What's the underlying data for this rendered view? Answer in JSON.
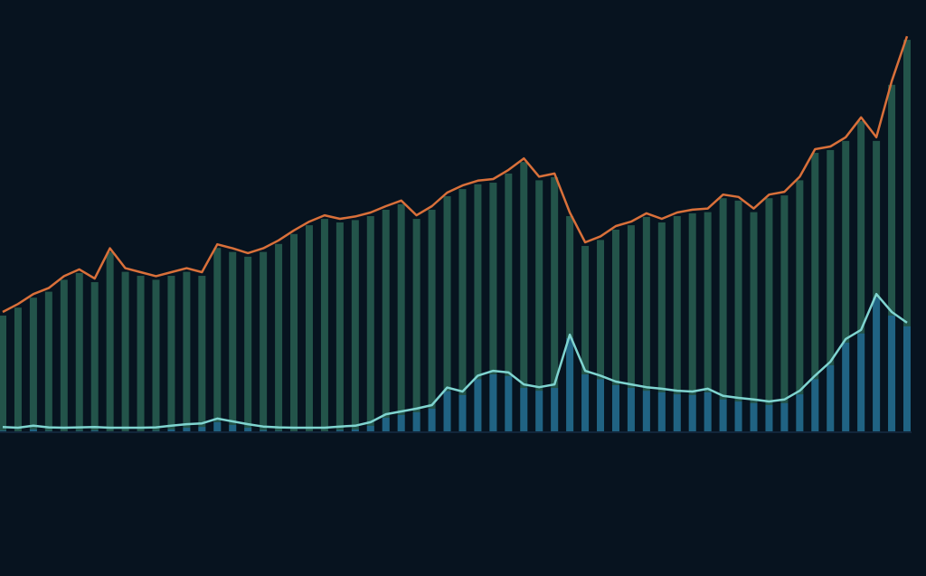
{
  "chart_data": {
    "type": "line",
    "ylim": [
      0,
      100
    ],
    "background": "#07131f",
    "series": [
      {
        "color": "#d9703a",
        "fill": "#3b8a6e",
        "values": [
          30,
          32,
          34.5,
          36,
          39,
          40.7,
          38.4,
          46,
          41,
          40,
          39,
          40,
          41,
          40,
          47,
          46,
          44.8,
          46,
          48,
          50.5,
          52.7,
          54.3,
          53.4,
          54,
          55,
          56.6,
          58,
          54.3,
          56.6,
          60,
          61.8,
          63,
          63.4,
          65.7,
          68.6,
          64,
          64.8,
          55,
          47.5,
          49,
          51.6,
          52.7,
          54.8,
          53.4,
          55,
          55.7,
          56,
          59.5,
          58.9,
          56,
          59.5,
          60.2,
          64,
          70.9,
          71.6,
          73.9,
          78.9,
          73.9,
          88,
          99.3
        ]
      },
      {
        "color": "#7fd4d0",
        "fill": "#1f6fb3",
        "values": [
          1.1,
          0.9,
          1.4,
          1,
          0.9,
          1,
          1.1,
          0.9,
          0.9,
          0.9,
          1,
          1.4,
          1.8,
          2,
          3.2,
          2.5,
          1.8,
          1.2,
          1,
          0.9,
          0.9,
          0.9,
          1.2,
          1.4,
          2.3,
          4.3,
          5,
          5.7,
          6.6,
          11,
          10,
          14,
          15.2,
          14.8,
          11.8,
          11.1,
          11.8,
          24.3,
          15.2,
          14,
          12.5,
          11.8,
          11.1,
          10.7,
          10.2,
          10,
          10.7,
          8.9,
          8.4,
          8,
          7.5,
          8,
          10.2,
          14,
          17.5,
          23.2,
          25.5,
          34.5,
          30,
          27.3
        ]
      }
    ]
  }
}
